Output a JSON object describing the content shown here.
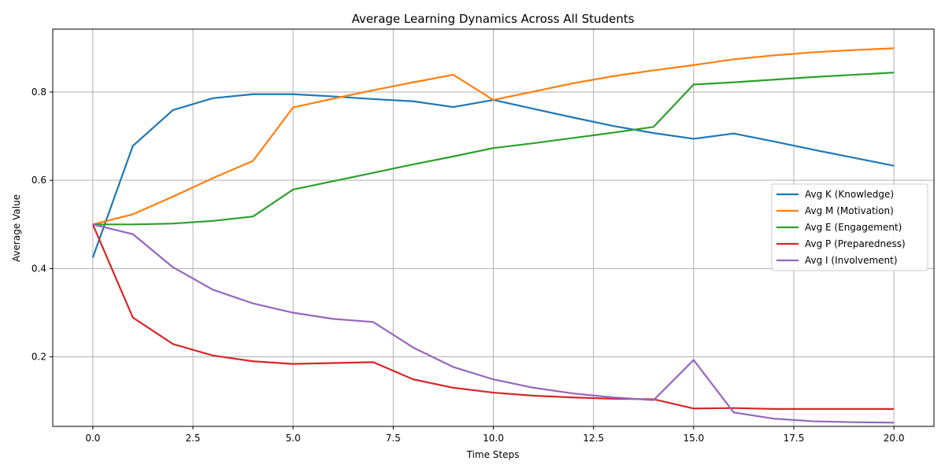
{
  "chart_data": {
    "type": "line",
    "title": "Average Learning Dynamics Across All Students",
    "xlabel": "Time Steps",
    "ylabel": "Average Value",
    "xlim": [
      -1,
      21
    ],
    "ylim": [
      0.0425,
      0.9425
    ],
    "xticks": [
      0.0,
      2.5,
      5.0,
      7.5,
      10.0,
      12.5,
      15.0,
      17.5,
      20.0
    ],
    "xtick_labels": [
      "0.0",
      "2.5",
      "5.0",
      "7.5",
      "10.0",
      "12.5",
      "15.0",
      "17.5",
      "20.0"
    ],
    "yticks": [
      0.2,
      0.4,
      0.6,
      0.8
    ],
    "ytick_labels": [
      "0.2",
      "0.4",
      "0.6",
      "0.8"
    ],
    "grid": true,
    "legend_position": "center-right",
    "x": [
      0,
      1,
      2,
      3,
      4,
      5,
      6,
      7,
      8,
      9,
      10,
      11,
      12,
      13,
      14,
      15,
      16,
      17,
      18,
      19,
      20
    ],
    "series": [
      {
        "name": "Avg K (Knowledge)",
        "color": "#1f77b4",
        "values": [
          0.425,
          0.678,
          0.759,
          0.786,
          0.795,
          0.795,
          0.79,
          0.784,
          0.779,
          0.766,
          0.782,
          0.762,
          0.742,
          0.723,
          0.707,
          0.694,
          0.706,
          0.688,
          0.669,
          0.651,
          0.633
        ]
      },
      {
        "name": "Avg M (Motivation)",
        "color": "#ff7f0e",
        "values": [
          0.5,
          0.523,
          0.563,
          0.605,
          0.644,
          0.765,
          0.785,
          0.804,
          0.822,
          0.839,
          0.782,
          0.801,
          0.82,
          0.836,
          0.849,
          0.861,
          0.874,
          0.883,
          0.89,
          0.895,
          0.899
        ]
      },
      {
        "name": "Avg E (Engagement)",
        "color": "#2ca02c",
        "values": [
          0.5,
          0.5,
          0.502,
          0.508,
          0.518,
          0.579,
          0.598,
          0.617,
          0.636,
          0.654,
          0.673,
          0.684,
          0.696,
          0.708,
          0.721,
          0.817,
          0.822,
          0.828,
          0.834,
          0.839,
          0.844
        ]
      },
      {
        "name": "Avg P (Preparedness)",
        "color": "#d62728",
        "values": [
          0.5,
          0.289,
          0.229,
          0.203,
          0.19,
          0.184,
          0.186,
          0.188,
          0.149,
          0.13,
          0.119,
          0.112,
          0.108,
          0.105,
          0.104,
          0.083,
          0.084,
          0.082,
          0.082,
          0.082,
          0.082
        ]
      },
      {
        "name": "Avg I (Involvement)",
        "color": "#9467bd",
        "values": [
          0.5,
          0.478,
          0.403,
          0.352,
          0.321,
          0.3,
          0.286,
          0.279,
          0.221,
          0.177,
          0.149,
          0.13,
          0.117,
          0.108,
          0.102,
          0.193,
          0.074,
          0.06,
          0.054,
          0.052,
          0.051
        ]
      }
    ]
  }
}
